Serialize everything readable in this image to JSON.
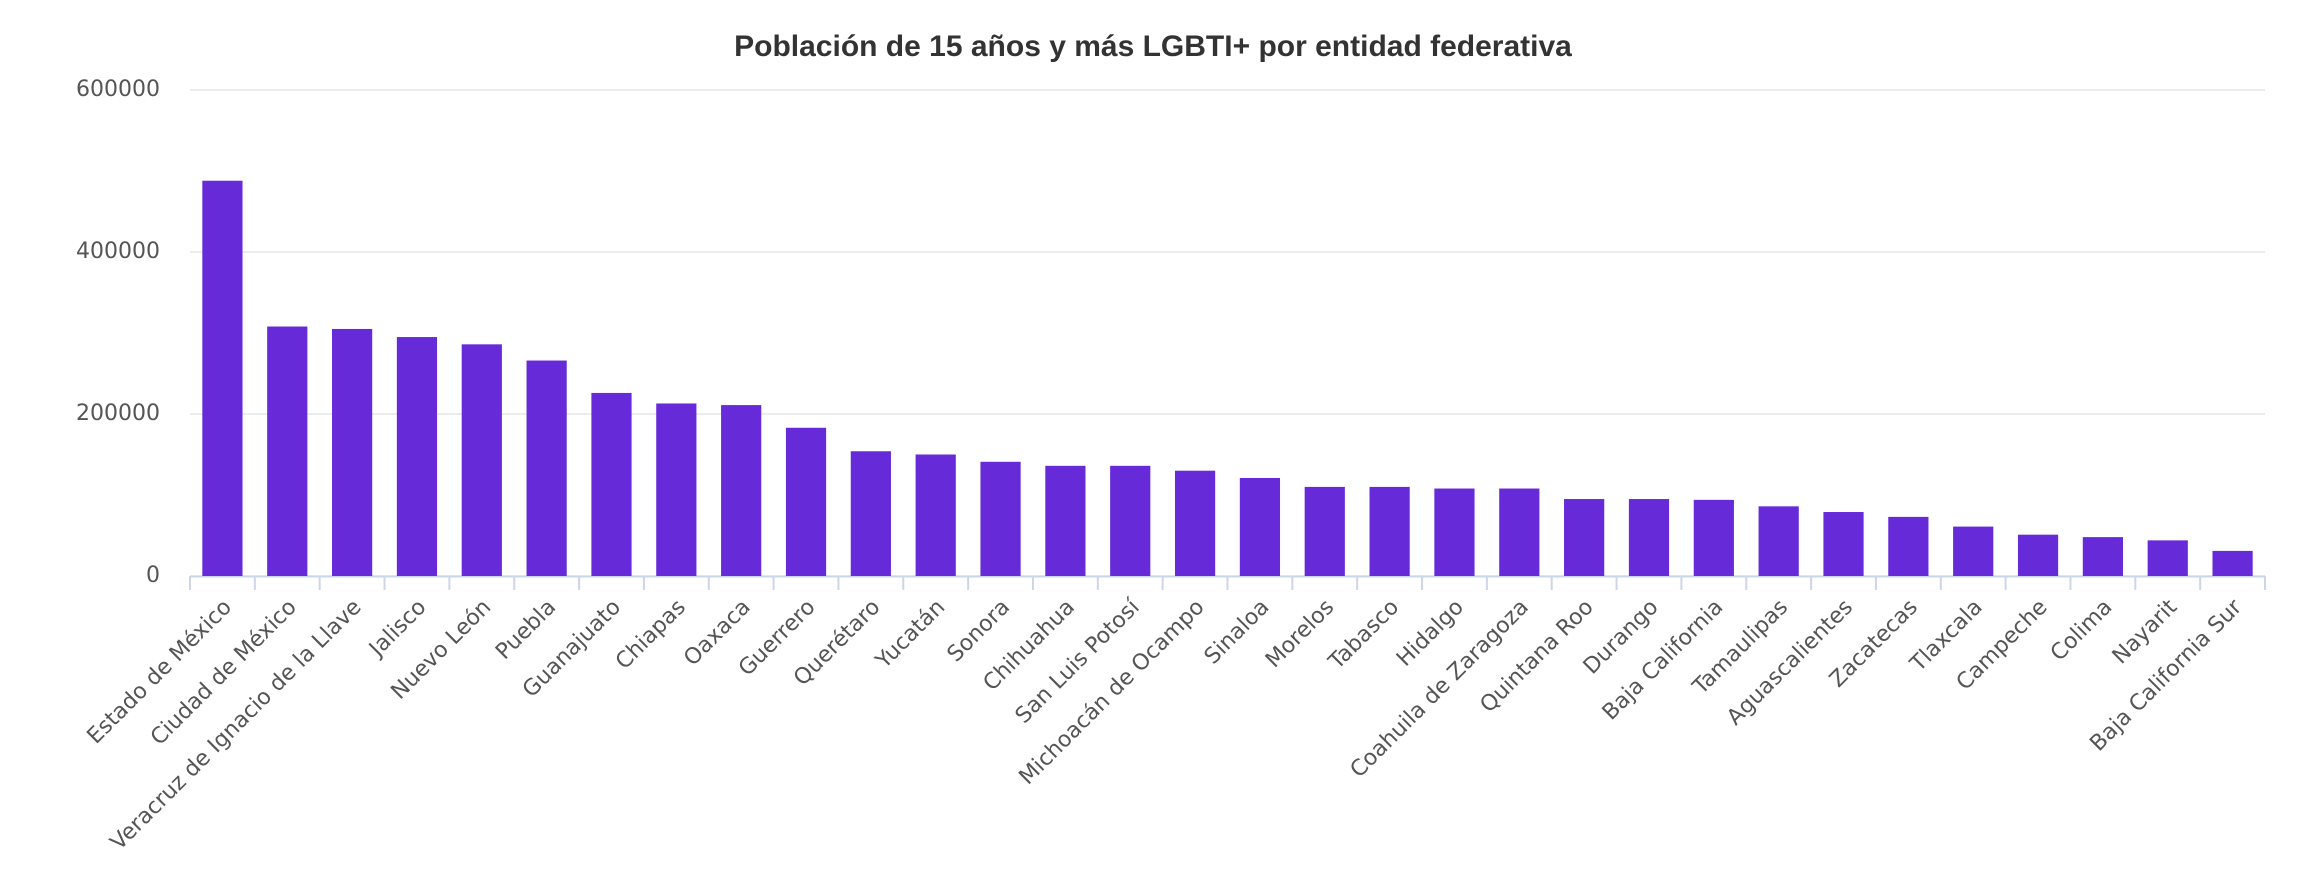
{
  "chart_data": {
    "type": "bar",
    "title": "Población de 15 años y más LGBTI+ por entidad federativa",
    "categories": [
      "Estado de México",
      "Ciudad de México",
      "Veracruz de Ignacio de la Llave",
      "Jalisco",
      "Nuevo León",
      "Puebla",
      "Guanajuato",
      "Chiapas",
      "Oaxaca",
      "Guerrero",
      "Querétaro",
      "Yucatán",
      "Sonora",
      "Chihuahua",
      "San Luis Potosí",
      "Michoacán de Ocampo",
      "Sinaloa",
      "Morelos",
      "Tabasco",
      "Hidalgo",
      "Coahuila de Zaragoza",
      "Quintana Roo",
      "Durango",
      "Baja California",
      "Tamaulipas",
      "Aguascalientes",
      "Zacatecas",
      "Tlaxcala",
      "Campeche",
      "Colima",
      "Nayarit",
      "Baja California Sur"
    ],
    "values": [
      488000,
      308000,
      305000,
      295000,
      286000,
      266000,
      226000,
      213000,
      211000,
      183000,
      154000,
      150000,
      141000,
      136000,
      136000,
      130000,
      121000,
      110000,
      110000,
      108000,
      108000,
      95000,
      95000,
      94000,
      86000,
      79000,
      73000,
      61000,
      51000,
      48000,
      44000,
      31000
    ],
    "color": "#672ad8",
    "ylim": [
      0,
      600000
    ],
    "yticks": [
      0,
      200000,
      400000,
      600000
    ],
    "grid": true
  }
}
